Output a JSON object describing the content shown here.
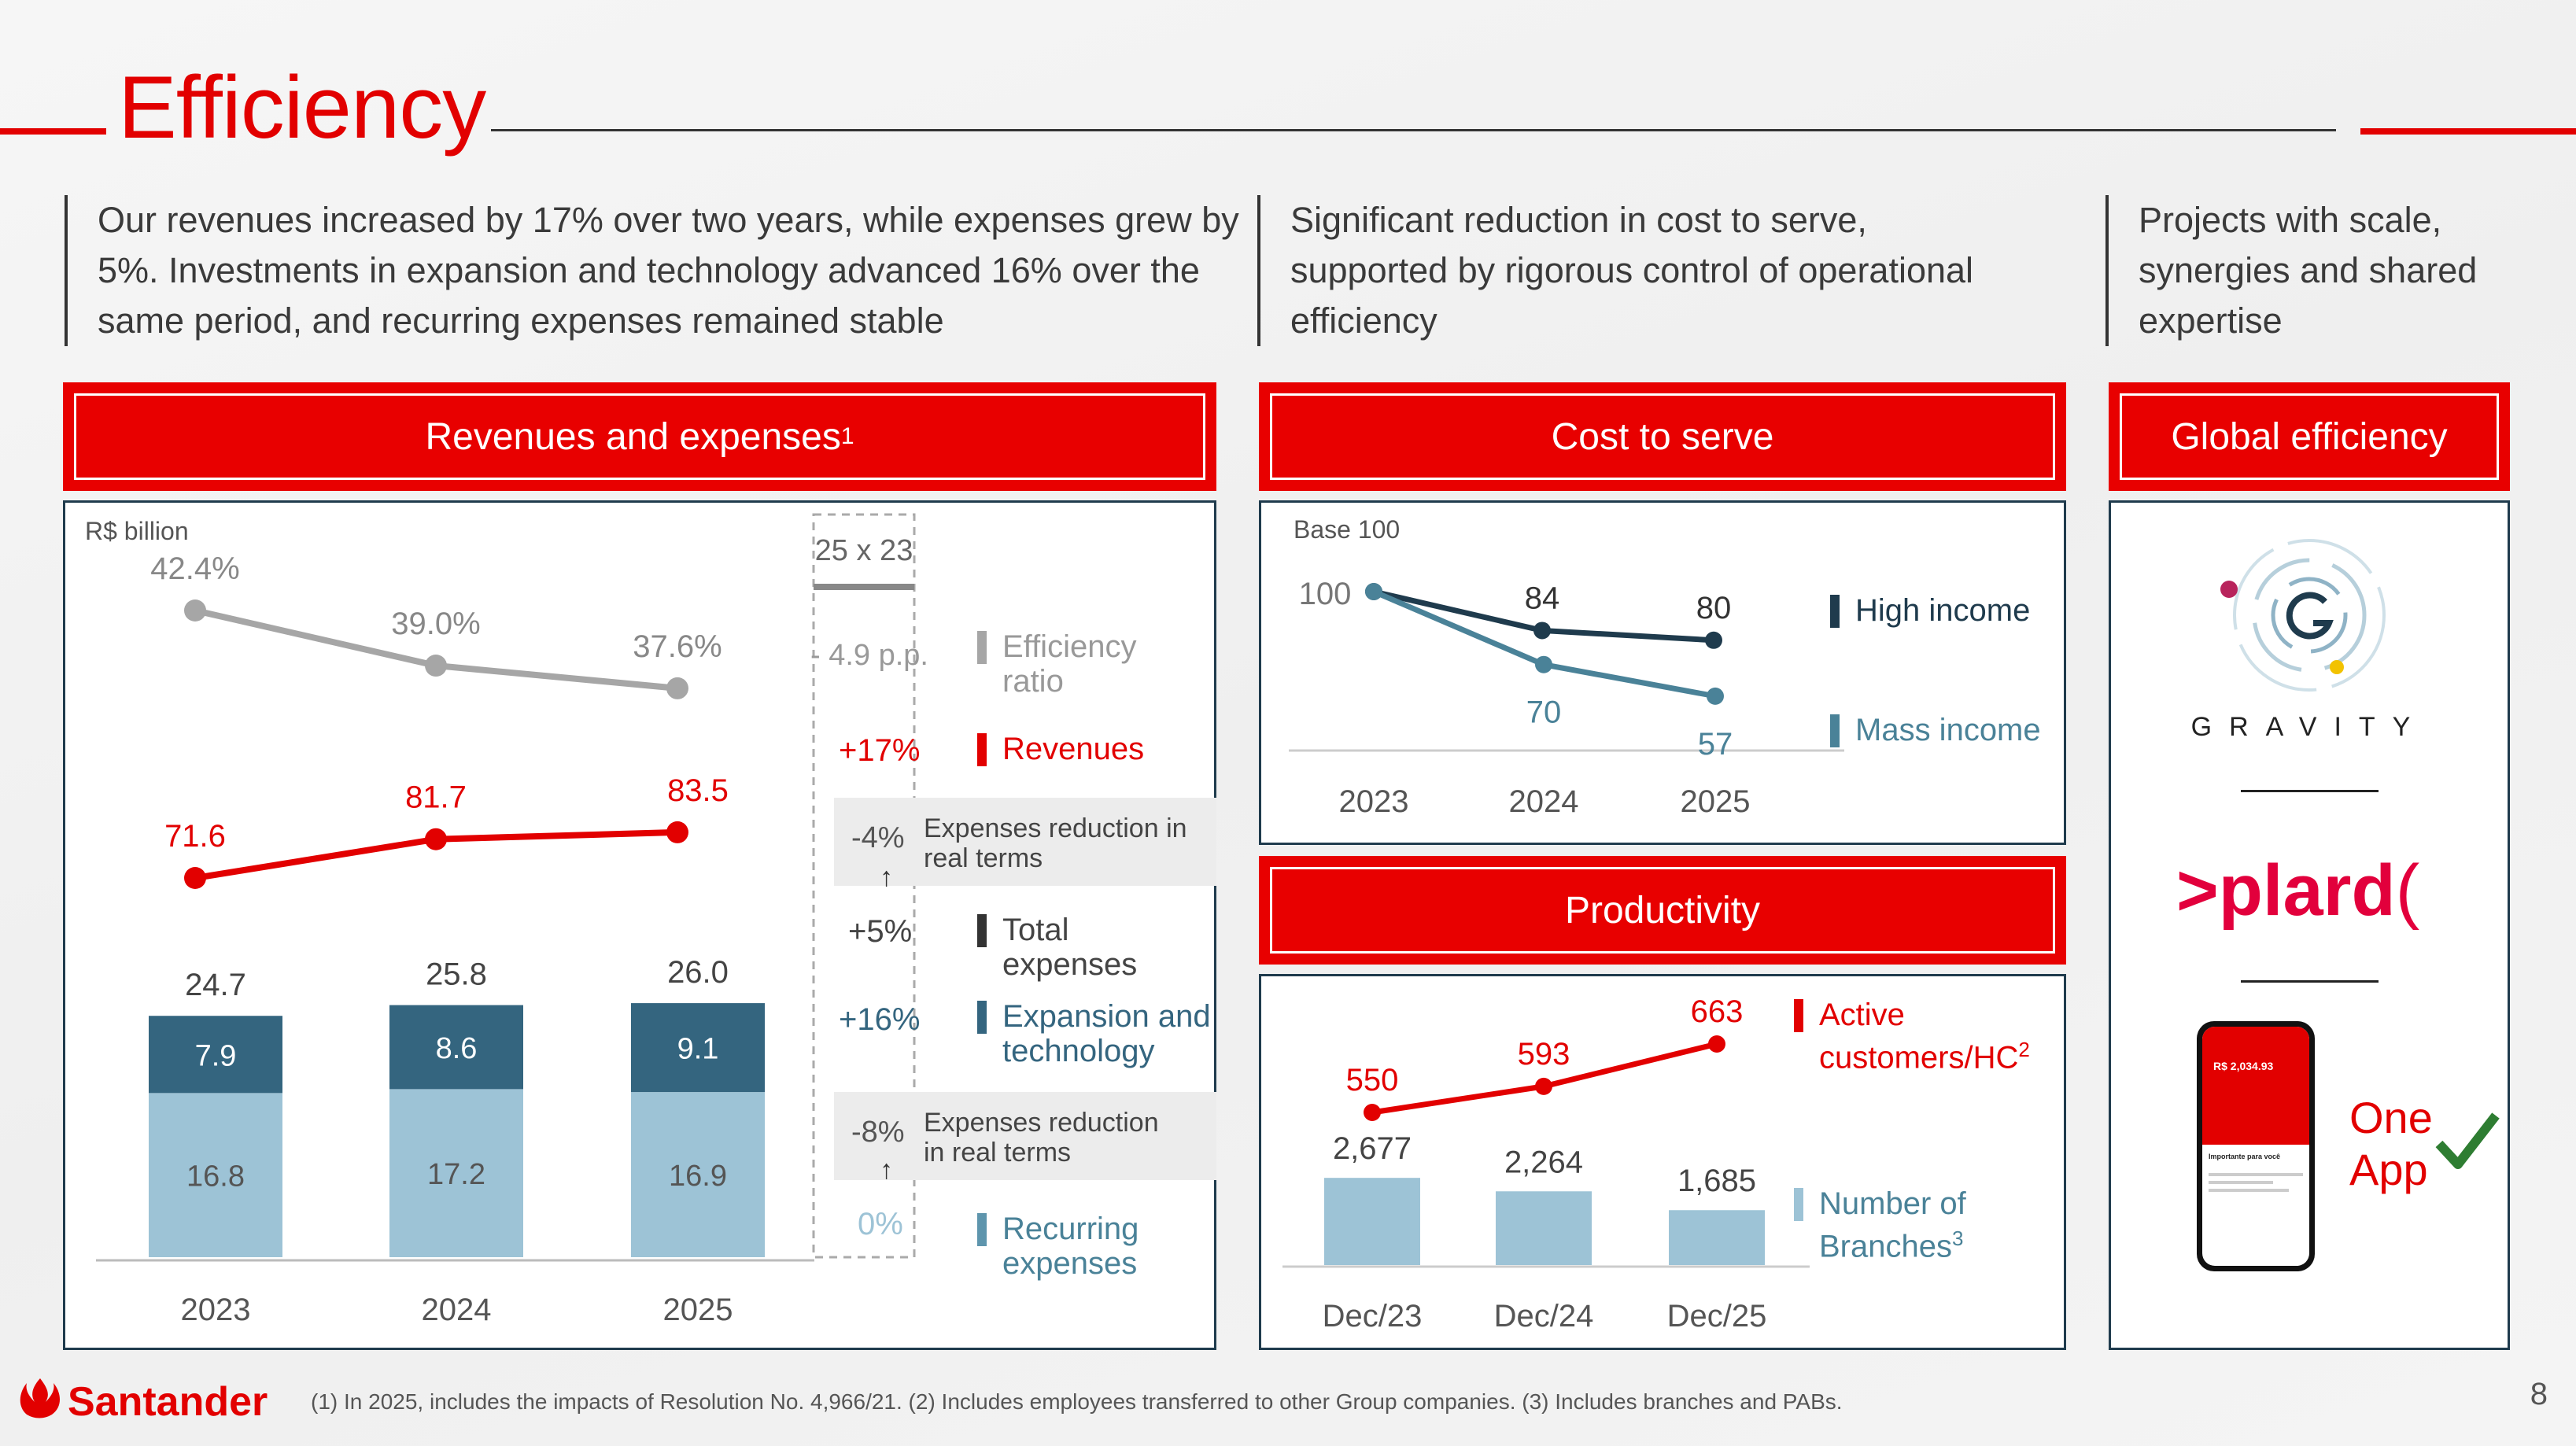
{
  "title": "Efficiency",
  "intro": {
    "left": "Our revenues increased by 17% over two years, while expenses grew by 5%. Investments in expansion and technology advanced 16% over the same period, and recurring expenses remained stable",
    "middle": "Significant reduction in cost to serve, supported by rigorous control of operational efficiency",
    "right": "Projects with scale, synergies and shared expertise"
  },
  "headers": {
    "revenues": "Revenues and expenses",
    "revenues_sup": "1",
    "cost": "Cost to serve",
    "productivity": "Productivity",
    "global": "Global efficiency"
  },
  "colors": {
    "red": "#e20000",
    "gray": "#a6a6a6",
    "dark_teal": "#34657f",
    "light_blue": "#9dc3d6",
    "high_income": "#1f3b4d",
    "mass_income": "#4a8298"
  },
  "chart_data": [
    {
      "type": "bar",
      "id": "revenues_expenses",
      "unit": "R$ billion",
      "categories": [
        "2023",
        "2024",
        "2025"
      ],
      "series": [
        {
          "name": "Recurring expenses",
          "values": [
            16.8,
            17.2,
            16.9
          ]
        },
        {
          "name": "Expansion and technology",
          "values": [
            7.9,
            8.6,
            9.1
          ]
        },
        {
          "name": "Total expenses",
          "values": [
            24.7,
            25.8,
            26.0
          ]
        },
        {
          "name": "Revenues",
          "values": [
            71.6,
            81.7,
            83.5
          ]
        },
        {
          "name": "Efficiency ratio",
          "values": [
            "42.4%",
            "39.0%",
            "37.6%"
          ]
        }
      ],
      "comparison": {
        "header": "25 x 23",
        "efficiency": "- 4.9 p.p.",
        "revenues": "+17%",
        "real_terms_total": "-4%",
        "real_terms_total_label": "Expenses reduction in real terms",
        "total": "+5%",
        "expansion": "+16%",
        "real_terms_recurring": "-8%",
        "real_terms_recurring_label": "Expenses reduction in real terms",
        "recurring": "0%"
      },
      "legend": {
        "efficiency": "Efficiency ratio",
        "revenues": "Revenues",
        "total": "Total expenses",
        "expansion": "Expansion and technology",
        "recurring": "Recurring expenses"
      }
    },
    {
      "type": "line",
      "id": "cost_to_serve",
      "unit": "Base 100",
      "categories": [
        "2023",
        "2024",
        "2025"
      ],
      "series": [
        {
          "name": "High income",
          "values": [
            100,
            84,
            80
          ]
        },
        {
          "name": "Mass income",
          "values": [
            100,
            70,
            57
          ]
        }
      ],
      "start_label": "100"
    },
    {
      "type": "bar",
      "id": "productivity",
      "categories": [
        "Dec/23",
        "Dec/24",
        "Dec/25"
      ],
      "series": [
        {
          "name": "Number of Branches",
          "sup": "3",
          "values": [
            2677,
            2264,
            1685
          ],
          "labels": [
            "2,677",
            "2,264",
            "1,685"
          ]
        },
        {
          "name": "Active customers/HC",
          "sup": "2",
          "values": [
            550,
            593,
            663
          ],
          "labels": [
            "550",
            "593",
            "663"
          ]
        }
      ]
    }
  ],
  "global": {
    "gravity": "GRAVITY",
    "plard": "plard",
    "phone_balance": "R$ 2,034.93",
    "phone_heading": "Importante para você",
    "one_app": "One App"
  },
  "footer": {
    "brand": "Santander",
    "footnote": "(1) In 2025, includes the impacts of Resolution No. 4,966/21. (2) Includes employees transferred to other Group companies. (3) Includes branches and PABs.",
    "page": "8"
  }
}
